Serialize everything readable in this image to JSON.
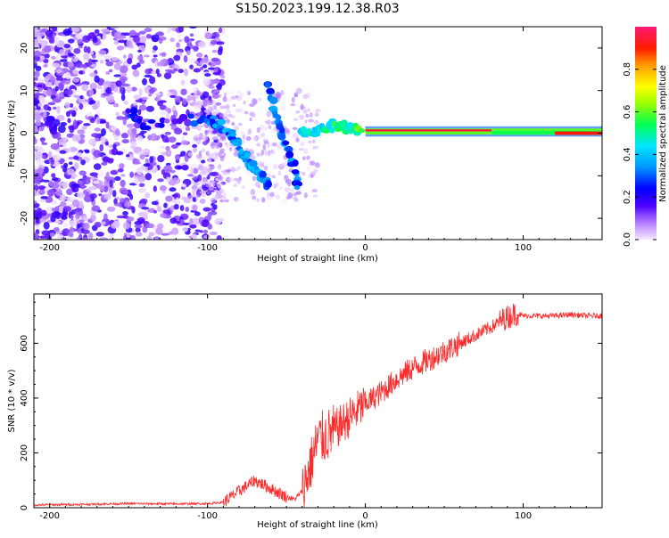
{
  "title": "S150.2023.199.12.38.R03",
  "chart_data": [
    {
      "type": "heatmap",
      "xlabel": "Height of straight line (km)",
      "ylabel": "Frequency (Hz)",
      "xlim": [
        -210,
        150
      ],
      "ylim": [
        -25,
        25
      ],
      "x_ticks": [
        -200,
        -100,
        0,
        100
      ],
      "y_ticks": [
        -20,
        -10,
        0,
        10,
        20
      ],
      "colorbar": {
        "label": "Normalized spectral amplitude",
        "ticks": [
          "0.0",
          "0.2",
          "0.4",
          "0.6",
          "0.8"
        ],
        "range": [
          0,
          1
        ],
        "colors": [
          "#f6e9ff",
          "#8a2be2",
          "#0000ff",
          "#00e5ff",
          "#00ff00",
          "#ffff00",
          "#ff8000",
          "#ff0000",
          "#ff1a75"
        ]
      },
      "ridge": [
        {
          "x": -150,
          "f": 5,
          "a": 0.25
        },
        {
          "x": -140,
          "f": 2,
          "a": 0.2
        },
        {
          "x": -120,
          "f": 3,
          "a": 0.15
        },
        {
          "x": -100,
          "f": 3,
          "a": 0.3
        },
        {
          "x": -92,
          "f": 2,
          "a": 0.35
        },
        {
          "x": -85,
          "f": 0,
          "a": 0.3
        },
        {
          "x": -80,
          "f": -3,
          "a": 0.35
        },
        {
          "x": -75,
          "f": -6,
          "a": 0.35
        },
        {
          "x": -70,
          "f": -8,
          "a": 0.35
        },
        {
          "x": -65,
          "f": -11,
          "a": 0.3
        },
        {
          "x": -60,
          "f": -12,
          "a": 0.3
        },
        {
          "x": -57,
          "f": 5,
          "a": 0.35
        },
        {
          "x": -62,
          "f": 12,
          "a": 0.25
        },
        {
          "x": -50,
          "f": -2,
          "a": 0.3
        },
        {
          "x": -45,
          "f": -8,
          "a": 0.3
        },
        {
          "x": -42,
          "f": -14,
          "a": 0.3
        },
        {
          "x": -40,
          "f": 0,
          "a": 0.4
        },
        {
          "x": -30,
          "f": 0.5,
          "a": 0.45
        },
        {
          "x": -20,
          "f": 2,
          "a": 0.5
        },
        {
          "x": -10,
          "f": 1,
          "a": 0.5
        },
        {
          "x": -2,
          "f": 1,
          "a": 0.55
        },
        {
          "x": 10,
          "f": 0.7,
          "a": 0.95
        },
        {
          "x": 50,
          "f": 0.7,
          "a": 0.95
        },
        {
          "x": 80,
          "f": 0.5,
          "a": 0.8
        },
        {
          "x": 100,
          "f": 0.2,
          "a": 0.5
        },
        {
          "x": 150,
          "f": 0,
          "a": 0.85
        }
      ]
    },
    {
      "type": "line",
      "xlabel": "Height of straight line (km)",
      "ylabel": "SNR (10 * v/v)",
      "xlim": [
        -210,
        150
      ],
      "ylim": [
        0,
        780
      ],
      "x_ticks": [
        -200,
        -100,
        0,
        100
      ],
      "y_ticks": [
        0,
        200,
        400,
        600
      ],
      "series": [
        {
          "color": "#ff2a2a",
          "x": [
            -210,
            -180,
            -150,
            -120,
            -100,
            -90,
            -80,
            -70,
            -60,
            -50,
            -45,
            -40,
            -35,
            -30,
            -25,
            -20,
            -10,
            0,
            10,
            20,
            30,
            40,
            50,
            60,
            70,
            80,
            88,
            92,
            95,
            100,
            110,
            120,
            130,
            140,
            150
          ],
          "values": [
            10,
            12,
            15,
            14,
            15,
            20,
            60,
            100,
            70,
            40,
            30,
            60,
            150,
            250,
            260,
            280,
            330,
            380,
            420,
            470,
            510,
            540,
            570,
            600,
            630,
            660,
            690,
            700,
            710,
            700,
            700,
            700,
            705,
            700,
            700
          ]
        }
      ]
    }
  ]
}
